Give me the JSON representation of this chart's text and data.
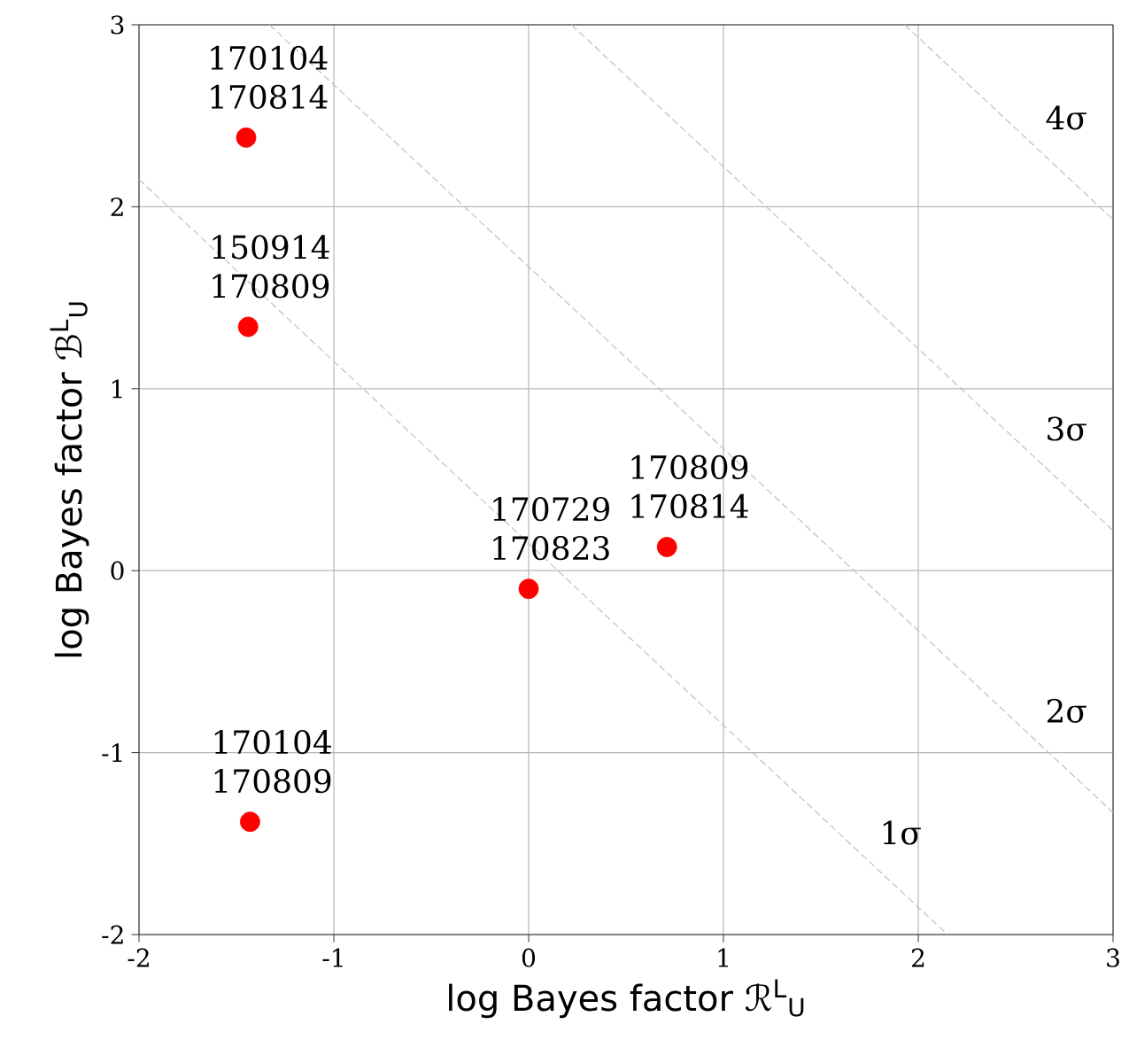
{
  "chart_data": {
    "type": "scatter",
    "xlabel": "log Bayes factor ℛ$^{L}$$_{U}$",
    "ylabel": "log Bayes factor ℬ$^{L}$$_{U}$",
    "xlim": [
      -2,
      3
    ],
    "ylim": [
      -2,
      3
    ],
    "xticks": [
      -2,
      -1,
      0,
      1,
      2,
      3
    ],
    "yticks": [
      -2,
      -1,
      0,
      1,
      2,
      3
    ],
    "grid": true,
    "marker": "circle",
    "series": [
      {
        "type": "line",
        "name": "1σ",
        "marker": "none",
        "line_style": "dashed",
        "color": "#c0c0c0",
        "x": [
          -2,
          2.15
        ],
        "values": [
          2.15,
          -2
        ]
      },
      {
        "type": "line",
        "name": "2σ",
        "marker": "none",
        "line_style": "dashed",
        "color": "#c0c0c0",
        "x": [
          -1.33,
          3
        ],
        "values": [
          3,
          -1.33
        ]
      },
      {
        "type": "line",
        "name": "3σ",
        "marker": "none",
        "line_style": "dashed",
        "color": "#c0c0c0",
        "x": [
          0.22,
          3
        ],
        "values": [
          3,
          0.22
        ]
      },
      {
        "type": "line",
        "name": "4σ",
        "marker": "none",
        "line_style": "dashed",
        "color": "#c0c0c0",
        "x": [
          1.93,
          3
        ],
        "values": [
          3,
          1.93
        ]
      },
      {
        "color": "#ff0000",
        "x": [
          -1.45,
          -1.44,
          0.0,
          0.71,
          -1.43
        ],
        "values": [
          2.38,
          1.34,
          -0.1,
          0.13,
          -1.38
        ]
      }
    ],
    "annotations": [
      {
        "text": "170104 170814",
        "x": -1.45,
        "y": 2.38
      },
      {
        "text": "150914 170809",
        "x": -1.44,
        "y": 1.34
      },
      {
        "text": "170729 170823",
        "x": 0.0,
        "y": -0.1
      },
      {
        "text": "170809 170814",
        "x": 0.71,
        "y": 0.13
      },
      {
        "text": "170104 170809",
        "x": -1.43,
        "y": -1.38
      }
    ]
  }
}
